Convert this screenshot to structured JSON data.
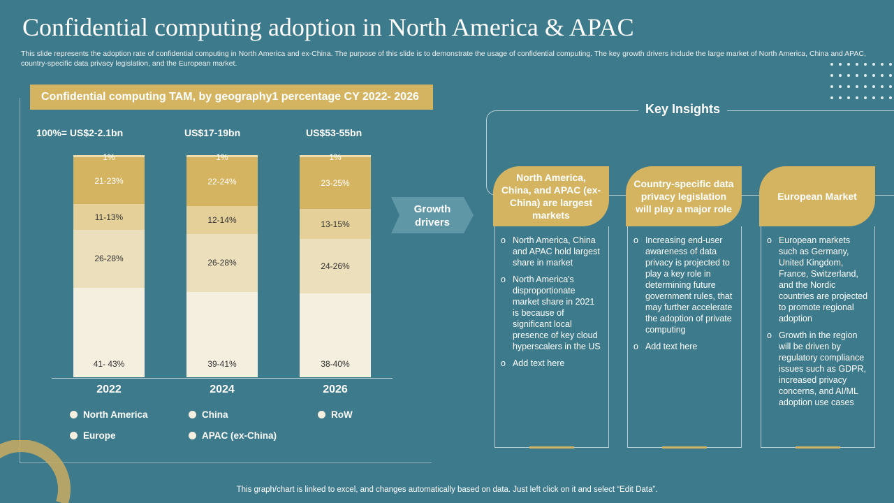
{
  "title": "Confidential computing adoption in North America & APAC",
  "subtitle": "This slide represents the adoption rate of confidential computing in North America and ex-China. The purpose of this slide is to demonstrate the usage of confidential computing. The key growth drivers include the large market of North America, China and APAC,  country-specific data privacy legislation, and the European market.",
  "chart_data": {
    "type": "bar",
    "stacked": true,
    "title": "Confidential computing TAM, by geography1 percentage CY 2022- 2026",
    "categories": [
      "2022",
      "2024",
      "2026"
    ],
    "totals": [
      "100%= US$2-2.1bn",
      "US$17-19bn",
      "US$53-55bn"
    ],
    "series": [
      {
        "name": "North America",
        "color": "#f5efe0",
        "values": [
          42,
          40,
          39
        ],
        "labels": [
          "41- 43%",
          "39-41%",
          "38-40%"
        ]
      },
      {
        "name": "APAC (ex-China)",
        "color": "#ecdfbb",
        "values": [
          27,
          27,
          25
        ],
        "labels": [
          "26-28%",
          "26-28%",
          "24-26%"
        ]
      },
      {
        "name": "China",
        "color": "#e5d09a",
        "values": [
          12,
          13,
          14
        ],
        "labels": [
          "11-13%",
          "12-14%",
          "13-15%"
        ]
      },
      {
        "name": "Europe",
        "color": "#d4b461",
        "values": [
          22,
          23,
          24
        ],
        "labels": [
          "21-23%",
          "22-24%",
          "23-25%"
        ]
      },
      {
        "name": "RoW",
        "color": "#eddcae",
        "values": [
          1,
          1,
          1
        ],
        "labels": [
          "1%",
          "1%",
          "1%"
        ]
      }
    ],
    "legend": [
      "North America",
      "China",
      "RoW",
      "Europe",
      "APAC (ex-China)"
    ]
  },
  "growth_drivers": "Growth drivers",
  "key_insights": "Key Insights",
  "cards": [
    {
      "title": "North America, China, and APAC (ex-China) are largest markets",
      "bullets": [
        "North America, China and APAC hold largest share in market",
        "North America's disproportionate market share in 2021 is because of significant local presence of key cloud hyperscalers in the US",
        "Add text here"
      ]
    },
    {
      "title": "Country-specific data privacy legislation will play a major role",
      "bullets": [
        "Increasing end-user awareness of data privacy is projected to play a key role in determining future government rules, that may further accelerate the adoption of private computing",
        "Add text here"
      ]
    },
    {
      "title": "European Market",
      "bullets": [
        "European markets such as Germany, United Kingdom, France, Switzerland, and the Nordic countries are projected to promote regional adoption",
        "Growth in the region will be driven by regulatory compliance issues such as GDPR, increased privacy concerns, and AI/ML adoption use cases"
      ]
    }
  ],
  "bullet_glyph": "o",
  "footer": "This graph/chart is linked to excel, and changes automatically based on data. Just left click on it and select “Edit Data”."
}
